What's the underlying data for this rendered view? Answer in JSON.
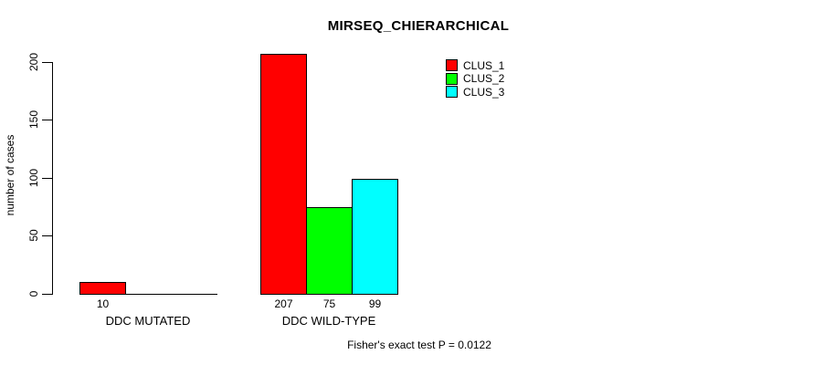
{
  "chart_data": {
    "type": "bar",
    "title": "MIRSEQ_CHIERARCHICAL",
    "ylabel": "number of cases",
    "xlabel": "",
    "categories": [
      "DDC MUTATED",
      "DDC WILD-TYPE"
    ],
    "series": [
      {
        "name": "CLUS_1",
        "color": "#FF0000",
        "values": [
          10,
          207
        ]
      },
      {
        "name": "CLUS_2",
        "color": "#00FF00",
        "values": [
          0,
          75
        ]
      },
      {
        "name": "CLUS_3",
        "color": "#00FFFF",
        "values": [
          0,
          99
        ]
      }
    ],
    "visible_bar_labels": [
      "10",
      "207",
      "75",
      "99"
    ],
    "yticks": [
      0,
      50,
      100,
      150,
      200
    ],
    "ylim": [
      0,
      207
    ],
    "grid": false,
    "legend_position": "top-right",
    "bar_edge_color": "#000000",
    "background_color": "#FFFFFF",
    "annotation": "Fisher's exact test P = 0.0122"
  }
}
